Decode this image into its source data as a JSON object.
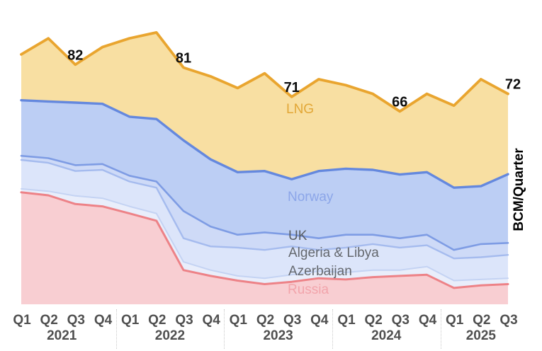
{
  "chart_data": {
    "type": "area",
    "stacked": true,
    "title": "",
    "ylabel": "BCM/Quarter",
    "unit": "BCM/Quarter",
    "ylim": [
      0,
      95
    ],
    "grid": false,
    "legend": "labels-inside-areas",
    "x_tick_labels": [
      "Q1",
      "Q2",
      "Q3",
      "Q4",
      "Q1",
      "Q2",
      "Q3",
      "Q4",
      "Q1",
      "Q2",
      "Q3",
      "Q4",
      "Q1",
      "Q2",
      "Q3",
      "Q4",
      "Q1",
      "Q2",
      "Q3"
    ],
    "year_groups": [
      {
        "label": "2021",
        "start": 0,
        "end": 3
      },
      {
        "label": "2022",
        "start": 4,
        "end": 7
      },
      {
        "label": "2023",
        "start": 8,
        "end": 11
      },
      {
        "label": "2024",
        "start": 12,
        "end": 15
      },
      {
        "label": "2025",
        "start": 16,
        "end": 18
      }
    ],
    "series": [
      {
        "name": "Russia",
        "fill_color": "#F8CED2",
        "line_color": "#ED8287",
        "label_color": "#F2A4AB",
        "values": [
          38.3,
          37.3,
          34.3,
          33.5,
          31.1,
          28.6,
          11.7,
          9.7,
          8.1,
          6.9,
          7.7,
          8.9,
          8.5,
          9.3,
          9.7,
          10.1,
          5.6,
          6.5,
          6.9
        ]
      },
      {
        "name": "Azerbaijan",
        "fill_color": "#E9EEFB",
        "line_color": "#C4D3F3",
        "label_color": "#64686E",
        "values": [
          1.2,
          1.4,
          2.8,
          2.8,
          2.4,
          2.5,
          2.8,
          2.0,
          1.6,
          2.0,
          2.4,
          2.4,
          2.4,
          2.4,
          2.0,
          2.8,
          2.5,
          2.0,
          2.0
        ]
      },
      {
        "name": "Algeria & Libya",
        "fill_color": "#DCE5FA",
        "line_color": "#A5BBEE",
        "label_color": "#64686E",
        "values": [
          9.9,
          9.7,
          8.5,
          9.7,
          8.5,
          8.8,
          8.1,
          8.1,
          9.7,
          9.7,
          9.7,
          7.3,
          8.5,
          8.9,
          7.7,
          7.3,
          7.6,
          7.6,
          8.0
        ]
      },
      {
        "name": "UK",
        "fill_color": "#CEDAF7",
        "line_color": "#7E9CE4",
        "label_color": "#585D63",
        "values": [
          1.4,
          1.6,
          2.0,
          2.0,
          2.0,
          2.1,
          9.3,
          6.8,
          4.4,
          6.0,
          4.0,
          4.0,
          4.4,
          3.2,
          3.2,
          3.6,
          2.9,
          4.5,
          4.1
        ]
      },
      {
        "name": "Norway",
        "fill_color": "#BCCEF4",
        "line_color": "#6488DE",
        "label_color": "#8CA6E9",
        "values": [
          19.0,
          19.4,
          21.4,
          20.6,
          20.2,
          21.4,
          24.2,
          23.0,
          21.4,
          21.0,
          19.0,
          23.0,
          22.6,
          22.2,
          21.8,
          21.4,
          21.3,
          19.8,
          23.5
        ]
      },
      {
        "name": "LNG",
        "fill_color": "#F8DFA2",
        "line_color": "#E9A52F",
        "label_color": "#E2A737",
        "values": [
          15.7,
          21.6,
          13.0,
          19.4,
          26.8,
          29.6,
          24.9,
          28.4,
          28.8,
          33.4,
          28.2,
          31.4,
          28.6,
          26.0,
          21.6,
          26.8,
          28.1,
          36.6,
          27.5
        ]
      }
    ],
    "annotations": [
      {
        "index": 2,
        "text": "82"
      },
      {
        "index": 6,
        "text": "81"
      },
      {
        "index": 10,
        "text": "71"
      },
      {
        "index": 14,
        "text": "66"
      },
      {
        "index": 18,
        "text": "72"
      }
    ]
  }
}
